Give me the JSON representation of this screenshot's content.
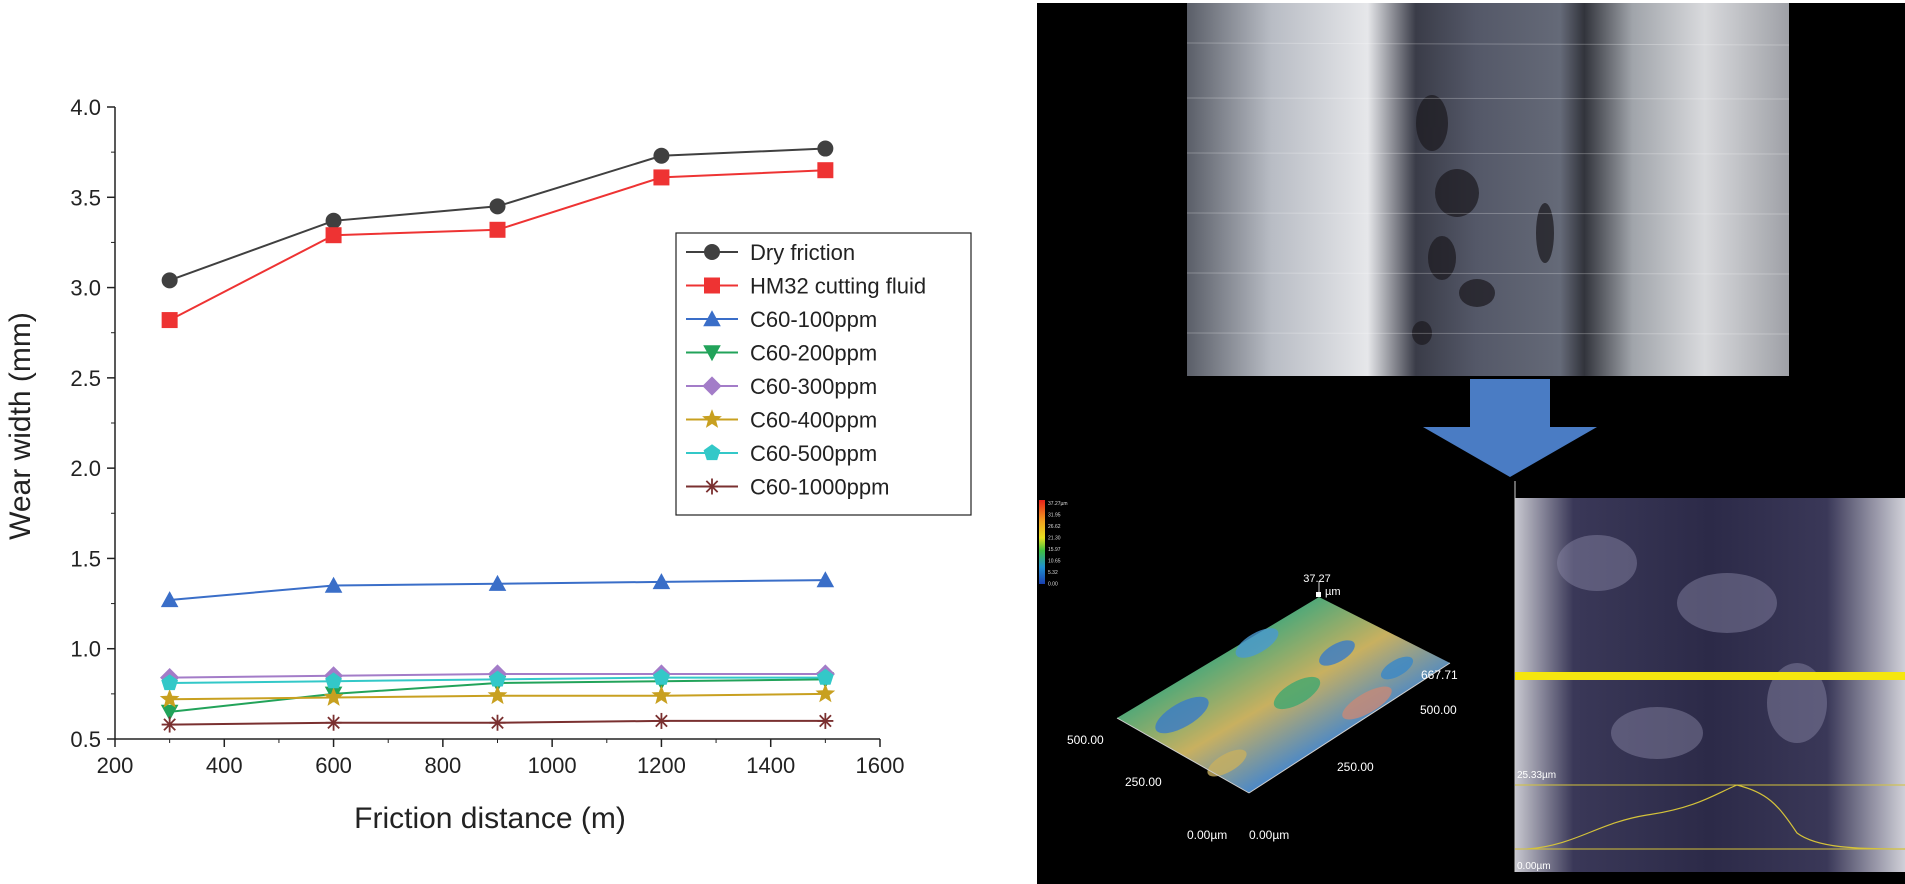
{
  "chart_data": {
    "type": "line",
    "xlabel": "Friction distance (m)",
    "ylabel": "Wear width (mm)",
    "xlim": [
      200,
      1600
    ],
    "ylim": [
      0.5,
      4.0
    ],
    "x_ticks": [
      "200",
      "400",
      "600",
      "800",
      "1000",
      "1200",
      "1400",
      "1600"
    ],
    "y_ticks": [
      "0.5",
      "1.0",
      "1.5",
      "2.0",
      "2.5",
      "3.0",
      "3.5",
      "4.0"
    ],
    "x": [
      300,
      600,
      900,
      1200,
      1500
    ],
    "legend_position": "right-middle",
    "series": [
      {
        "name": "Dry friction",
        "color": "#404040",
        "marker": "circle",
        "values": [
          3.04,
          3.37,
          3.45,
          3.73,
          3.77
        ]
      },
      {
        "name": "HM32 cutting fluid",
        "color": "#ee3333",
        "marker": "square",
        "values": [
          2.82,
          3.29,
          3.32,
          3.61,
          3.65
        ]
      },
      {
        "name": "C60-100ppm",
        "color": "#3a6ec8",
        "marker": "triangle-up",
        "values": [
          1.27,
          1.35,
          1.36,
          1.37,
          1.38
        ]
      },
      {
        "name": "C60-200ppm",
        "color": "#22a35a",
        "marker": "triangle-down",
        "values": [
          0.65,
          0.75,
          0.81,
          0.82,
          0.83
        ]
      },
      {
        "name": "C60-300ppm",
        "color": "#a37cc8",
        "marker": "diamond",
        "values": [
          0.84,
          0.85,
          0.86,
          0.86,
          0.86
        ]
      },
      {
        "name": "C60-400ppm",
        "color": "#c8a020",
        "marker": "star",
        "values": [
          0.72,
          0.73,
          0.74,
          0.74,
          0.75
        ]
      },
      {
        "name": "C60-500ppm",
        "color": "#33c8c8",
        "marker": "pentagon",
        "values": [
          0.81,
          0.82,
          0.83,
          0.84,
          0.84
        ]
      },
      {
        "name": "C60-1000ppm",
        "color": "#7a3030",
        "marker": "asterisk",
        "values": [
          0.58,
          0.59,
          0.59,
          0.6,
          0.6
        ]
      }
    ]
  },
  "right_panel": {
    "colorbar_labels": [
      "37.27µm",
      "31.95",
      "26.62",
      "21.30",
      "15.97",
      "10.65",
      "5.32",
      "0.00"
    ],
    "surface_labels": {
      "z_max": "37.27",
      "z_unit": "µm",
      "x_end": "667.71",
      "x_mid": "500.00",
      "x_quarter": "250.00",
      "y_end": "500.00",
      "y_mid": "250.00",
      "origin_z": "0.00µm",
      "origin_x": "0.00µm"
    },
    "profile_labels": {
      "top": "25.33µm",
      "bottom": "0.00µm"
    },
    "colors": {
      "arrow": "#4a7cc4",
      "scan_line": "#f5e60f",
      "profile_line": "#d4c23a"
    }
  }
}
